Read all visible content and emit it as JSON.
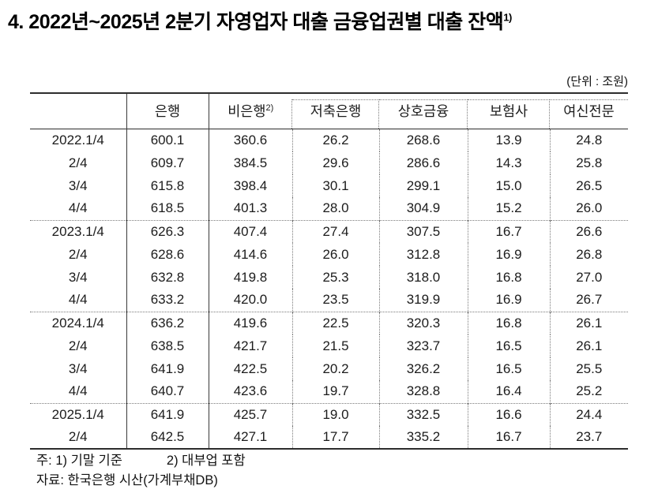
{
  "title": {
    "text": "4. 2022년~2025년 2분기 자영업자 대출 금융업권별 대출 잔액",
    "superscript": "1)"
  },
  "unit_label": "(단위 : 조원)",
  "table": {
    "columns": [
      "",
      "은행",
      "비은행",
      "저축은행",
      "상호금융",
      "보험사",
      "여신전문"
    ],
    "nonbank_superscript": "2)",
    "groups": [
      {
        "rows": [
          {
            "label": "2022.1/4",
            "values": [
              "600.1",
              "360.6",
              "26.2",
              "268.6",
              "13.9",
              "24.8"
            ]
          },
          {
            "label": "2/4",
            "values": [
              "609.7",
              "384.5",
              "29.6",
              "286.6",
              "14.3",
              "25.8"
            ]
          },
          {
            "label": "3/4",
            "values": [
              "615.8",
              "398.4",
              "30.1",
              "299.1",
              "15.0",
              "26.5"
            ]
          },
          {
            "label": "4/4",
            "values": [
              "618.5",
              "401.3",
              "28.0",
              "304.9",
              "15.2",
              "26.0"
            ]
          }
        ]
      },
      {
        "rows": [
          {
            "label": "2023.1/4",
            "values": [
              "626.3",
              "407.4",
              "27.4",
              "307.5",
              "16.7",
              "26.6"
            ]
          },
          {
            "label": "2/4",
            "values": [
              "628.6",
              "414.6",
              "26.0",
              "312.8",
              "16.9",
              "26.8"
            ]
          },
          {
            "label": "3/4",
            "values": [
              "632.8",
              "419.8",
              "25.3",
              "318.0",
              "16.8",
              "27.0"
            ]
          },
          {
            "label": "4/4",
            "values": [
              "633.2",
              "420.0",
              "23.5",
              "319.9",
              "16.9",
              "26.7"
            ]
          }
        ]
      },
      {
        "rows": [
          {
            "label": "2024.1/4",
            "values": [
              "636.2",
              "419.6",
              "22.5",
              "320.3",
              "16.8",
              "26.1"
            ]
          },
          {
            "label": "2/4",
            "values": [
              "638.5",
              "421.7",
              "21.5",
              "323.7",
              "16.5",
              "26.1"
            ]
          },
          {
            "label": "3/4",
            "values": [
              "641.9",
              "422.5",
              "20.2",
              "326.2",
              "16.5",
              "25.5"
            ]
          },
          {
            "label": "4/4",
            "values": [
              "640.7",
              "423.6",
              "19.7",
              "328.8",
              "16.4",
              "25.2"
            ]
          }
        ]
      },
      {
        "rows": [
          {
            "label": "2025.1/4",
            "values": [
              "641.9",
              "425.7",
              "19.0",
              "332.5",
              "16.6",
              "24.4"
            ]
          },
          {
            "label": "2/4",
            "values": [
              "642.5",
              "427.1",
              "17.7",
              "335.2",
              "16.7",
              "23.7"
            ]
          }
        ]
      }
    ]
  },
  "footnotes": {
    "note1": "주: 1) 기말 기준",
    "note2": "2) 대부업 포함",
    "source": "자료: 한국은행 시산(가계부채DB)"
  }
}
